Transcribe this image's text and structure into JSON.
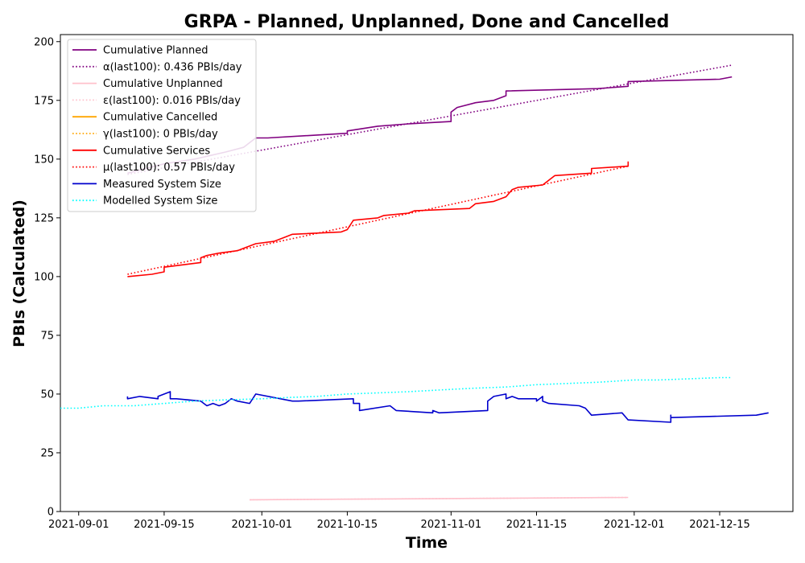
{
  "chart_data": {
    "type": "line",
    "title": "GRPA - Planned, Unplanned, Done  and Cancelled",
    "xlabel": "Time",
    "ylabel": "PBIs (Calculated)",
    "x_axis": {
      "type": "date",
      "range": [
        "2021-08-29",
        "2021-12-27"
      ],
      "ticks": [
        "2021-09-01",
        "2021-09-15",
        "2021-10-01",
        "2021-10-15",
        "2021-11-01",
        "2021-11-15",
        "2021-12-01",
        "2021-12-15"
      ]
    },
    "y_axis": {
      "range": [
        0,
        203
      ],
      "ticks": [
        0,
        25,
        50,
        75,
        100,
        125,
        150,
        175,
        200
      ]
    },
    "grid": false,
    "legend_position": "top-left",
    "series": [
      {
        "name": "Cumulative Planned",
        "color": "#800080",
        "style": "solid",
        "points": [
          [
            "2021-09-09",
            144
          ],
          [
            "2021-09-15",
            148
          ],
          [
            "2021-09-20",
            150
          ],
          [
            "2021-09-25",
            153
          ],
          [
            "2021-09-28",
            155
          ],
          [
            "2021-09-29",
            157
          ],
          [
            "2021-09-30",
            159
          ],
          [
            "2021-10-02",
            159
          ],
          [
            "2021-10-15",
            161
          ],
          [
            "2021-10-15",
            162
          ],
          [
            "2021-10-20",
            164
          ],
          [
            "2021-10-25",
            165
          ],
          [
            "2021-11-01",
            166
          ],
          [
            "2021-11-01",
            170
          ],
          [
            "2021-11-02",
            172
          ],
          [
            "2021-11-05",
            174
          ],
          [
            "2021-11-08",
            175
          ],
          [
            "2021-11-10",
            177
          ],
          [
            "2021-11-10",
            179
          ],
          [
            "2021-11-25",
            180
          ],
          [
            "2021-11-30",
            181
          ],
          [
            "2021-11-30",
            183
          ],
          [
            "2021-12-15",
            184
          ],
          [
            "2021-12-17",
            185
          ]
        ]
      },
      {
        "name": "α(last100): 0.436 PBIs/day",
        "color": "#800080",
        "style": "dotted",
        "points": [
          [
            "2021-09-09",
            143.5
          ],
          [
            "2021-12-17",
            190
          ]
        ]
      },
      {
        "name": "Cumulative Unplanned",
        "color": "#ffc0cb",
        "style": "solid",
        "points": [
          [
            "2021-09-29",
            5
          ],
          [
            "2021-11-30",
            6
          ]
        ]
      },
      {
        "name": "ε(last100): 0.016 PBIs/day",
        "color": "#ffc0cb",
        "style": "dotted",
        "points": [
          [
            "2021-09-29",
            5
          ],
          [
            "2021-11-30",
            6
          ]
        ]
      },
      {
        "name": "Cumulative Cancelled",
        "color": "#ffa500",
        "style": "solid",
        "points": []
      },
      {
        "name": "γ(last100): 0 PBIs/day",
        "color": "#ffa500",
        "style": "dotted",
        "points": []
      },
      {
        "name": "Cumulative Services",
        "color": "#ff0000",
        "style": "solid",
        "points": [
          [
            "2021-09-09",
            100
          ],
          [
            "2021-09-13",
            101
          ],
          [
            "2021-09-15",
            102
          ],
          [
            "2021-09-15",
            104
          ],
          [
            "2021-09-18",
            105
          ],
          [
            "2021-09-21",
            106
          ],
          [
            "2021-09-21",
            108
          ],
          [
            "2021-09-22",
            109
          ],
          [
            "2021-09-24",
            110
          ],
          [
            "2021-09-27",
            111
          ],
          [
            "2021-09-28",
            112
          ],
          [
            "2021-09-30",
            114
          ],
          [
            "2021-10-03",
            115
          ],
          [
            "2021-10-05",
            117
          ],
          [
            "2021-10-06",
            118
          ],
          [
            "2021-10-14",
            119
          ],
          [
            "2021-10-15",
            120
          ],
          [
            "2021-10-16",
            124
          ],
          [
            "2021-10-20",
            125
          ],
          [
            "2021-10-21",
            126
          ],
          [
            "2021-10-25",
            127
          ],
          [
            "2021-10-26",
            128
          ],
          [
            "2021-11-04",
            129
          ],
          [
            "2021-11-05",
            131
          ],
          [
            "2021-11-08",
            132
          ],
          [
            "2021-11-09",
            133
          ],
          [
            "2021-11-10",
            134
          ],
          [
            "2021-11-11",
            137
          ],
          [
            "2021-11-12",
            138
          ],
          [
            "2021-11-16",
            139
          ],
          [
            "2021-11-17",
            141
          ],
          [
            "2021-11-18",
            143
          ],
          [
            "2021-11-24",
            144
          ],
          [
            "2021-11-24",
            146
          ],
          [
            "2021-11-30",
            147
          ],
          [
            "2021-11-30",
            149
          ]
        ]
      },
      {
        "name": "μ(last100): 0.57 PBIs/day",
        "color": "#ff0000",
        "style": "dotted",
        "points": [
          [
            "2021-09-09",
            101
          ],
          [
            "2021-11-30",
            147
          ]
        ]
      },
      {
        "name": "Measured System Size",
        "color": "#0000cd",
        "style": "solid",
        "points": [
          [
            "2021-09-09",
            49
          ],
          [
            "2021-09-09",
            48
          ],
          [
            "2021-09-11",
            49
          ],
          [
            "2021-09-14",
            48
          ],
          [
            "2021-09-14",
            49
          ],
          [
            "2021-09-16",
            51
          ],
          [
            "2021-09-16",
            48
          ],
          [
            "2021-09-17",
            48
          ],
          [
            "2021-09-21",
            47
          ],
          [
            "2021-09-22",
            45
          ],
          [
            "2021-09-23",
            46
          ],
          [
            "2021-09-24",
            45
          ],
          [
            "2021-09-25",
            46
          ],
          [
            "2021-09-26",
            48
          ],
          [
            "2021-09-27",
            47
          ],
          [
            "2021-09-29",
            46
          ],
          [
            "2021-09-30",
            50
          ],
          [
            "2021-10-06",
            47
          ],
          [
            "2021-10-07",
            47
          ],
          [
            "2021-10-16",
            48
          ],
          [
            "2021-10-16",
            46
          ],
          [
            "2021-10-17",
            46
          ],
          [
            "2021-10-17",
            43
          ],
          [
            "2021-10-22",
            45
          ],
          [
            "2021-10-23",
            43
          ],
          [
            "2021-10-29",
            42
          ],
          [
            "2021-10-29",
            43
          ],
          [
            "2021-10-30",
            42
          ],
          [
            "2021-11-07",
            43
          ],
          [
            "2021-11-07",
            47
          ],
          [
            "2021-11-08",
            49
          ],
          [
            "2021-11-10",
            50
          ],
          [
            "2021-11-10",
            48
          ],
          [
            "2021-11-11",
            49
          ],
          [
            "2021-11-12",
            48
          ],
          [
            "2021-11-15",
            48
          ],
          [
            "2021-11-15",
            47
          ],
          [
            "2021-11-16",
            49
          ],
          [
            "2021-11-16",
            47
          ],
          [
            "2021-11-17",
            46
          ],
          [
            "2021-11-22",
            45
          ],
          [
            "2021-11-23",
            44
          ],
          [
            "2021-11-24",
            41
          ],
          [
            "2021-11-29",
            42
          ],
          [
            "2021-11-30",
            39
          ],
          [
            "2021-12-07",
            38
          ],
          [
            "2021-12-07",
            41
          ],
          [
            "2021-12-07",
            40
          ],
          [
            "2021-12-21",
            41
          ],
          [
            "2021-12-23",
            42
          ]
        ]
      },
      {
        "name": "Modelled System Size",
        "color": "#00ffff",
        "style": "dotted",
        "points": [
          [
            "2021-08-29",
            44
          ],
          [
            "2021-09-01",
            44
          ],
          [
            "2021-09-05",
            45
          ],
          [
            "2021-09-10",
            45
          ],
          [
            "2021-09-15",
            46
          ],
          [
            "2021-09-20",
            47
          ],
          [
            "2021-09-25",
            47.5
          ],
          [
            "2021-10-01",
            48
          ],
          [
            "2021-10-05",
            48.5
          ],
          [
            "2021-10-10",
            49
          ],
          [
            "2021-10-15",
            50
          ],
          [
            "2021-10-20",
            50.5
          ],
          [
            "2021-10-25",
            51
          ],
          [
            "2021-11-01",
            52
          ],
          [
            "2021-11-05",
            52.5
          ],
          [
            "2021-11-10",
            53
          ],
          [
            "2021-11-15",
            54
          ],
          [
            "2021-11-20",
            54.5
          ],
          [
            "2021-11-25",
            55
          ],
          [
            "2021-12-01",
            56
          ],
          [
            "2021-12-05",
            56
          ],
          [
            "2021-12-10",
            56.5
          ],
          [
            "2021-12-15",
            57
          ],
          [
            "2021-12-17",
            57
          ]
        ]
      }
    ]
  }
}
